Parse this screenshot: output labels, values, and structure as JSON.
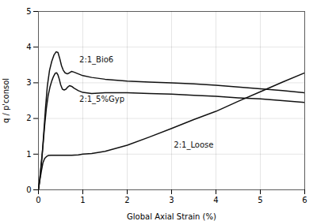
{
  "chart_data": {
    "type": "line",
    "xlabel": "Global Axial Strain (%)",
    "ylabel": "q / p'consol",
    "xlim": [
      0,
      6
    ],
    "ylim": [
      0,
      5
    ],
    "xticks": [
      0,
      1,
      2,
      3,
      4,
      5,
      6
    ],
    "yticks": [
      0,
      1,
      2,
      3,
      4,
      5
    ],
    "grid": true,
    "series": [
      {
        "name": "2:1_Bio6",
        "color": "#111111",
        "x": [
          0,
          0.04,
          0.08,
          0.12,
          0.16,
          0.2,
          0.25,
          0.3,
          0.35,
          0.4,
          0.44,
          0.48,
          0.52,
          0.56,
          0.6,
          0.65,
          0.7,
          0.75,
          0.8,
          0.9,
          1.0,
          1.2,
          1.5,
          2.0,
          2.5,
          3.0,
          3.5,
          4.0,
          4.5,
          5.0,
          5.5,
          6.0
        ],
        "values": [
          0,
          0.4,
          0.9,
          1.6,
          2.3,
          2.9,
          3.35,
          3.6,
          3.78,
          3.87,
          3.85,
          3.68,
          3.48,
          3.35,
          3.28,
          3.25,
          3.28,
          3.32,
          3.3,
          3.25,
          3.2,
          3.15,
          3.1,
          3.05,
          3.02,
          3.0,
          2.97,
          2.93,
          2.88,
          2.83,
          2.78,
          2.72
        ]
      },
      {
        "name": "2:1_5%Gyp",
        "color": "#111111",
        "x": [
          0,
          0.03,
          0.06,
          0.1,
          0.14,
          0.18,
          0.22,
          0.26,
          0.3,
          0.34,
          0.38,
          0.41,
          0.44,
          0.47,
          0.5,
          0.54,
          0.58,
          0.62,
          0.66,
          0.7,
          0.75,
          0.8,
          0.9,
          1.0,
          1.2,
          1.5,
          2.0,
          2.5,
          3.0,
          3.5,
          4.0,
          4.5,
          5.0,
          5.5,
          6.0
        ],
        "values": [
          0,
          0.3,
          0.7,
          1.2,
          1.8,
          2.3,
          2.65,
          2.88,
          3.05,
          3.18,
          3.27,
          3.28,
          3.22,
          3.1,
          2.95,
          2.82,
          2.8,
          2.82,
          2.88,
          2.92,
          2.9,
          2.85,
          2.78,
          2.73,
          2.7,
          2.72,
          2.72,
          2.7,
          2.68,
          2.65,
          2.62,
          2.58,
          2.55,
          2.5,
          2.45
        ]
      },
      {
        "name": "2:1_Loose",
        "color": "#111111",
        "x": [
          0,
          0.03,
          0.07,
          0.1,
          0.14,
          0.18,
          0.22,
          0.28,
          0.35,
          0.42,
          0.5,
          0.6,
          0.75,
          0.9,
          1.0,
          1.2,
          1.5,
          2.0,
          2.5,
          3.0,
          3.5,
          4.0,
          4.5,
          5.0,
          5.5,
          6.0
        ],
        "values": [
          0,
          0.25,
          0.55,
          0.75,
          0.88,
          0.93,
          0.96,
          0.97,
          0.97,
          0.97,
          0.97,
          0.97,
          0.97,
          0.98,
          1.0,
          1.02,
          1.08,
          1.25,
          1.48,
          1.72,
          1.97,
          2.2,
          2.48,
          2.75,
          3.02,
          3.28
        ]
      }
    ]
  }
}
